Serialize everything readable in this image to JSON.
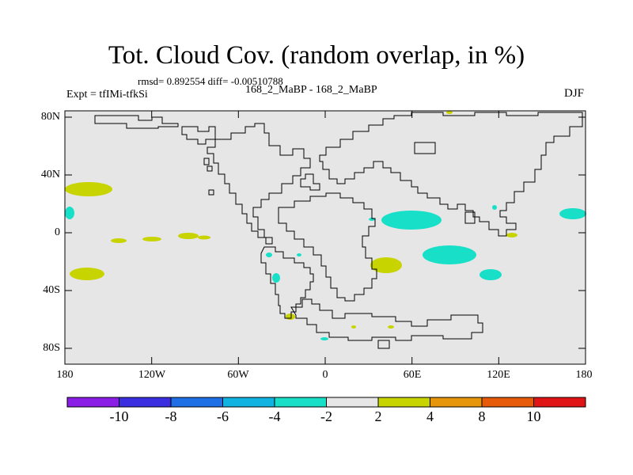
{
  "title": "Tot. Cloud Cov. (random overlap, in %)",
  "stats": "rmsd= 0.892554  diff= -0.00510788",
  "subtitle": "168_2_MaBP - 168_2_MaBP",
  "experiment": "Expt = tfIMi-tfkSi",
  "season": "DJF",
  "map": {
    "background": "#e6e6e6",
    "lat_ticks": [
      "80N",
      "40N",
      "0",
      "40S",
      "80S"
    ],
    "lon_ticks": [
      "180",
      "120W",
      "60W",
      "0",
      "60E",
      "120E",
      "180"
    ]
  },
  "colorbar": {
    "labels": [
      "-10",
      "-8",
      "-6",
      "-4",
      "-2",
      "2",
      "4",
      "8",
      "10"
    ],
    "colors": [
      "#8a1ee6",
      "#3a2ee0",
      "#1e6ee6",
      "#11b3e0",
      "#18e0c8",
      "#e6e6e6",
      "#c8d400",
      "#e6960a",
      "#e65a0a",
      "#e01414"
    ]
  },
  "anomaly_colors": {
    "cyan": "#18e0c8",
    "olive": "#c8d400"
  }
}
